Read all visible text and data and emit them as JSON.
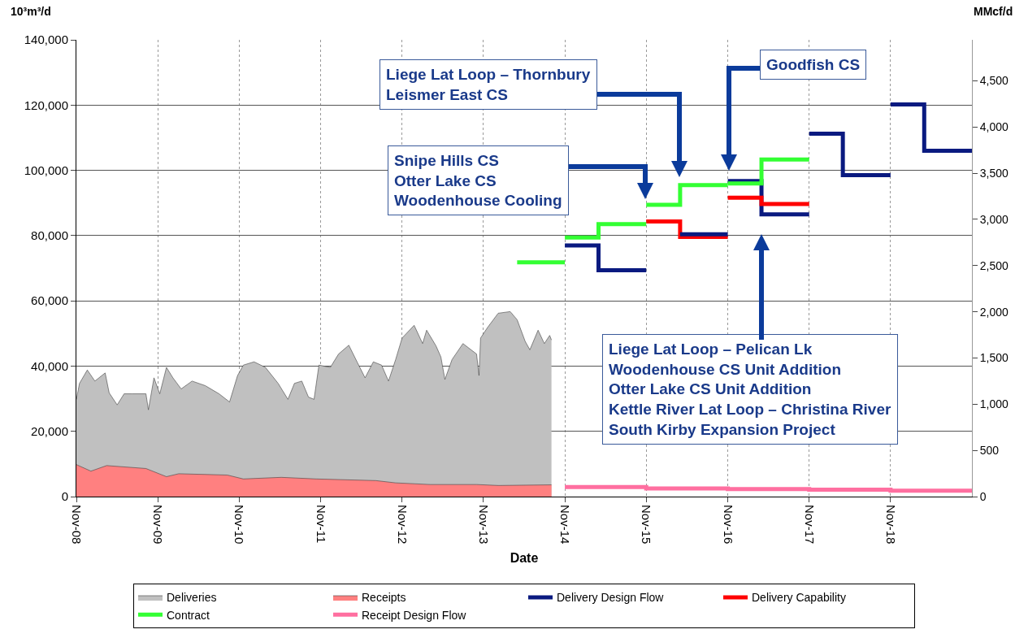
{
  "chart_data": {
    "type": "area",
    "xlabel": "Date",
    "ylabel": "10³m³/d",
    "y2label": "MMcf/d",
    "xlim": [
      "2008-11-01",
      "2019-11-01"
    ],
    "xticks": [
      {
        "value": "2008-11-01",
        "label": "Nov-08"
      },
      {
        "value": "2009-11-01",
        "label": "Nov-09"
      },
      {
        "value": "2010-11-01",
        "label": "Nov-10"
      },
      {
        "value": "2011-11-01",
        "label": "Nov-11"
      },
      {
        "value": "2012-11-01",
        "label": "Nov-12"
      },
      {
        "value": "2013-11-01",
        "label": "Nov-13"
      },
      {
        "value": "2014-11-01",
        "label": "Nov-14"
      },
      {
        "value": "2015-11-01",
        "label": "Nov-15"
      },
      {
        "value": "2016-11-01",
        "label": "Nov-16"
      },
      {
        "value": "2017-11-01",
        "label": "Nov-17"
      },
      {
        "value": "2018-11-01",
        "label": "Nov-18"
      }
    ],
    "ylim": [
      0,
      140000
    ],
    "yticks": [
      0,
      {
        "value": 20000,
        "label": "20,000"
      },
      {
        "value": 40000,
        "label": "40,000"
      },
      {
        "value": 60000,
        "label": "60,000"
      },
      {
        "value": 80000,
        "label": "80,000"
      },
      {
        "value": 100000,
        "label": "100,000"
      },
      {
        "value": 120000,
        "label": "120,000"
      },
      {
        "value": 140000,
        "label": "140,000"
      }
    ],
    "y2lim": [
      0,
      4944
    ],
    "y2ticks": [
      0,
      500,
      {
        "value": 1000,
        "label": "1,000"
      },
      {
        "value": 1500,
        "label": "1,500"
      },
      {
        "value": 2000,
        "label": "2,000"
      },
      {
        "value": 2500,
        "label": "2,500"
      },
      {
        "value": 3000,
        "label": "3,000"
      },
      {
        "value": 3500,
        "label": "3,500"
      },
      {
        "value": 4000,
        "label": "4,000"
      },
      {
        "value": 4500,
        "label": "4,500"
      }
    ],
    "grid": true,
    "legend": "bottom",
    "series": [
      {
        "name": "Deliveries",
        "color": "#c0c0c0",
        "x": [
          "2008-11-01",
          "2008-11-15",
          "2008-12-20",
          "2009-01-23",
          "2009-03-10",
          "2009-03-28",
          "2009-05-03",
          "2009-06-03",
          "2009-07-08",
          "2009-09-09",
          "2009-09-20",
          "2009-10-15",
          "2009-11-10",
          "2009-12-10",
          "2010-01-08",
          "2010-02-14",
          "2010-04-04",
          "2010-06-02",
          "2010-08-03",
          "2010-09-19",
          "2010-10-25",
          "2010-11-20",
          "2011-01-07",
          "2011-02-27",
          "2011-04-25",
          "2011-06-08",
          "2011-07-07",
          "2011-08-09",
          "2011-09-08",
          "2011-10-03",
          "2011-10-25",
          "2011-12-15",
          "2012-01-21",
          "2012-03-07",
          "2012-04-13",
          "2012-05-19",
          "2012-06-25",
          "2012-08-01",
          "2012-09-01",
          "2012-10-03",
          "2012-11-01",
          "2012-12-25",
          "2013-02-01",
          "2013-02-19",
          "2013-04-02",
          "2013-04-24",
          "2013-05-12",
          "2013-06-13",
          "2013-08-01",
          "2013-10-01",
          "2013-10-12",
          "2013-10-19",
          "2013-11-19",
          "2014-01-06",
          "2014-03-01",
          "2014-04-01",
          "2014-05-07",
          "2014-05-28",
          "2014-07-04",
          "2014-08-01",
          "2014-08-25",
          "2014-09-02"
        ],
        "values": [
          29800,
          34700,
          38800,
          35400,
          37900,
          31800,
          28100,
          31500,
          31500,
          31500,
          26600,
          36400,
          31500,
          39600,
          36400,
          33000,
          35400,
          34000,
          31500,
          29000,
          37100,
          40300,
          41300,
          39600,
          34700,
          29800,
          34700,
          35400,
          30500,
          29800,
          40300,
          39600,
          43700,
          46400,
          41300,
          36400,
          41300,
          40300,
          35400,
          42000,
          48600,
          52500,
          46900,
          51000,
          46200,
          42800,
          35900,
          42000,
          46900,
          43700,
          37100,
          48600,
          51800,
          56200,
          56700,
          54200,
          47600,
          45000,
          51000,
          46900,
          49400,
          48000
        ]
      },
      {
        "name": "Receipts",
        "color": "#ff8080",
        "x": [
          "2008-11-01",
          "2009-01-05",
          "2009-03-17",
          "2009-09-09",
          "2009-12-10",
          "2010-02-03",
          "2010-09-09",
          "2010-11-20",
          "2011-05-09",
          "2011-10-13",
          "2012-07-06",
          "2012-10-03",
          "2013-03-06",
          "2013-10-01",
          "2014-01-06",
          "2014-09-02"
        ],
        "values": [
          9800,
          7800,
          9500,
          8600,
          6100,
          7000,
          6600,
          5400,
          5900,
          5400,
          4900,
          4200,
          3700,
          3700,
          3400,
          3600
        ]
      },
      {
        "name": "Delivery Design Flow",
        "type": "step",
        "color": "#0a1a80",
        "x": [
          "2014-11",
          "2015-04",
          "2015-11"
        ],
        "values": [
          77000,
          69400,
          69400
        ]
      },
      {
        "name": "Delivery Capability",
        "type": "step",
        "color": "#ff0000",
        "x": [
          "2015-11",
          "2016-04",
          "2016-11"
        ],
        "values": [
          84300,
          79600,
          79600
        ]
      },
      {
        "name": "Contract",
        "type": "step",
        "color": "#33ff33",
        "x": [
          "2014-04",
          "2014-11"
        ],
        "values": [
          71800,
          71800
        ]
      },
      {
        "name": "Receipt Design Flow",
        "type": "step",
        "color": "#ff6fa0",
        "x": [
          "2014-11",
          "2015-11",
          "2016-11",
          "2017-11",
          "2018-11",
          "2019-11"
        ],
        "values": [
          2900,
          2500,
          2300,
          2100,
          1800,
          1800
        ]
      },
      {
        "type": "step",
        "color": "#0a1a80",
        "x": [
          "2016-04",
          "2016-11"
        ],
        "values": [
          80400,
          80400
        ]
      },
      {
        "type": "step",
        "color": "#0a1a80",
        "x": [
          "2016-11",
          "2017-04",
          "2017-11"
        ],
        "values": [
          96700,
          86500,
          86500
        ]
      },
      {
        "type": "step",
        "color": "#0a1a80",
        "x": [
          "2017-11",
          "2018-04",
          "2018-11"
        ],
        "values": [
          111200,
          98500,
          98500
        ]
      },
      {
        "type": "step",
        "color": "#0a1a80",
        "x": [
          "2018-11",
          "2019-04",
          "2019-11"
        ],
        "values": [
          120200,
          106000,
          106000
        ]
      },
      {
        "type": "step",
        "color": "#ff0000",
        "x": [
          "2016-11",
          "2017-04",
          "2017-11"
        ],
        "values": [
          91600,
          89700,
          89700
        ]
      },
      {
        "type": "step",
        "color": "#33ff33",
        "x": [
          "2014-11",
          "2015-04",
          "2015-11"
        ],
        "values": [
          79400,
          83500,
          83500
        ]
      },
      {
        "type": "step",
        "color": "#33ff33",
        "x": [
          "2015-11",
          "2016-04",
          "2016-11"
        ],
        "values": [
          89400,
          95500,
          95500
        ]
      },
      {
        "type": "step",
        "color": "#33ff33",
        "x": [
          "2016-11",
          "2017-04",
          "2017-11"
        ],
        "values": [
          96000,
          103300,
          103300
        ]
      }
    ],
    "annotations": [
      "Liege Lat Loop – Thornbury\nLeismer East CS",
      "Goodfish CS",
      "Snipe Hills CS\nOtter Lake CS\nWoodenhouse Cooling",
      "Liege Lat Loop – Pelican Lk\nWoodenhouse CS Unit Addition\nOtter Lake CS Unit Addition\nKettle River Lat Loop – Christina River\nSouth Kirby Expansion Project"
    ]
  }
}
